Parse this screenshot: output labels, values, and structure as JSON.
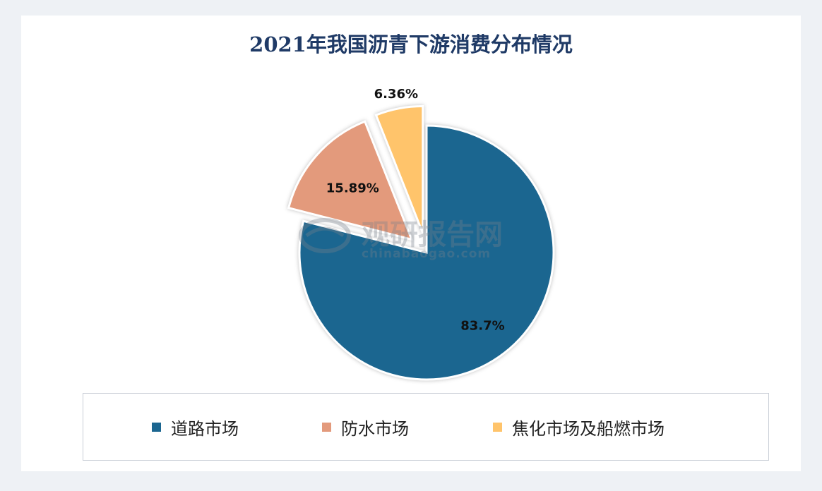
{
  "chart_data": {
    "type": "pie",
    "title": "2021年我国沥青下游消费分布情况",
    "slices": [
      {
        "name": "道路市场",
        "value": 83.7,
        "label": "83.7%",
        "color": "#1b6690",
        "exploded": false
      },
      {
        "name": "防水市场",
        "value": 15.89,
        "label": "15.89%",
        "color": "#e39a7c",
        "exploded": true
      },
      {
        "name": "焦化市场及船燃市场",
        "value": 6.36,
        "label": "6.36%",
        "color": "#ffc46b",
        "exploded": true
      }
    ],
    "legend_position": "bottom"
  },
  "watermark": {
    "text_cn": "观研报告网",
    "text_en": "chinabaogao.com"
  }
}
